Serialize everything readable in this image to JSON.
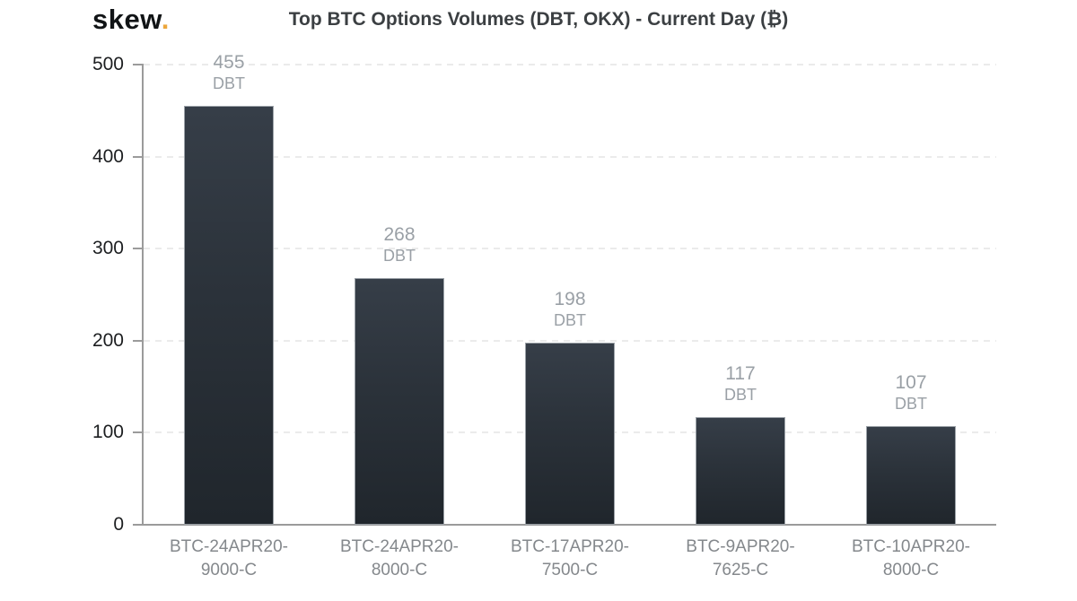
{
  "header": {
    "logo_text": "skew",
    "logo_dot": ".",
    "title": "Top BTC Options Volumes (DBT, OKX) - Current Day (₿)"
  },
  "chart_data": {
    "type": "bar",
    "title": "Top BTC Options Volumes (DBT, OKX) - Current Day (₿)",
    "categories": [
      "BTC-24APR20-9000-C",
      "BTC-24APR20-8000-C",
      "BTC-17APR20-7500-C",
      "BTC-9APR20-7625-C",
      "BTC-10APR20-8000-C"
    ],
    "categories_two_line": [
      [
        "BTC-24APR20-",
        "9000-C"
      ],
      [
        "BTC-24APR20-",
        "8000-C"
      ],
      [
        "BTC-17APR20-",
        "7500-C"
      ],
      [
        "BTC-9APR20-",
        "7625-C"
      ],
      [
        "BTC-10APR20-",
        "8000-C"
      ]
    ],
    "values": [
      455,
      268,
      198,
      117,
      107
    ],
    "bar_unit_label": "DBT",
    "yticks": [
      0,
      100,
      200,
      300,
      400,
      500
    ],
    "ylim": [
      0,
      500
    ],
    "xlabel": "",
    "ylabel": "",
    "grid": "horizontal-dashed",
    "legend": "none",
    "colors": {
      "bar_gradient_top": "#363e48",
      "bar_gradient_bottom": "#20262c",
      "bar_border": "#b0b6bc",
      "value_label": "#9aa0a6",
      "category_label": "#84888c",
      "tick_label": "#1c1e20",
      "axis_line": "#9b9b9b",
      "grid_line": "#ebebeb",
      "title": "#3b3f42",
      "logo": "#111416",
      "logo_dot": "#eca63c"
    }
  }
}
